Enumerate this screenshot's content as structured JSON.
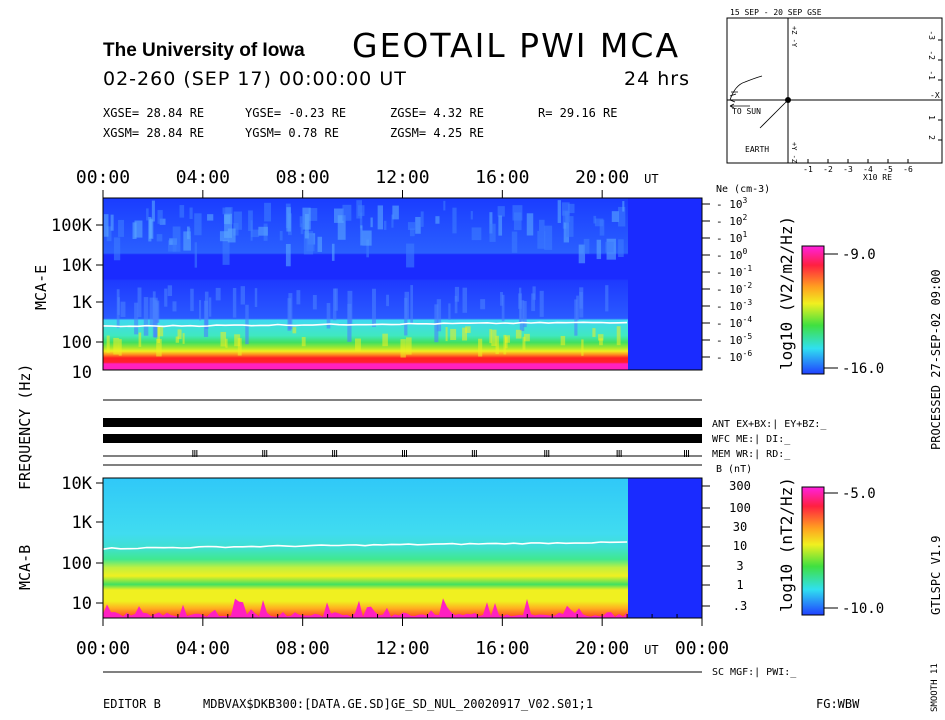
{
  "header": {
    "university": "The University of Iowa",
    "title": "GEOTAIL  PWI  MCA",
    "date_line": "02-260 (SEP 17) 00:00:00 UT",
    "duration": "24 hrs"
  },
  "coords": {
    "gse_x": "XGSE=  28.84 RE",
    "gse_y": "YGSE=  -0.23 RE",
    "gse_z": "ZGSE=   4.32 RE",
    "gse_r": "R= 29.16 RE",
    "gsm_x": "XGSM=  28.84 RE",
    "gsm_y": "YGSM=   0.78 RE",
    "gsm_z": "ZGSM=   4.25 RE"
  },
  "orbit": {
    "title": "15 SEP - 20 SEP  GSE",
    "to_sun": "TO SUN",
    "earth": "EARTH",
    "xlabel": "X10 RE",
    "x_ticks": [
      "-1",
      "-2",
      "-3",
      "-4",
      "-5",
      "-6"
    ],
    "side_ticks": [
      "2",
      "1",
      "-1",
      "-2",
      "-3"
    ],
    "plus_z": "+Z -Y",
    "minus_z": "+Y -Z",
    "x_axis_label": "-X"
  },
  "side": {
    "processed": "PROCESSED 27-SEP-02  09:00",
    "version": "GTLSPC   V1.9",
    "smooth": "SMOOTH 11",
    "frequency": "FREQUENCY (Hz)"
  },
  "status": {
    "ant": "ANT EX+BX:| EY+BZ:_",
    "wfc": "WFC ME:|    DI:_",
    "mem": "MEM WR:|    RD:_",
    "sc": "SC MGF:|   PWI:_"
  },
  "footer": {
    "editor": "EDITOR B",
    "file": "MDBVAX$DKB300:[DATA.GE.SD]GE_SD_NUL_20020917_V02.S01;1",
    "fg": "FG:WBW"
  },
  "chart_data": [
    {
      "type": "heatmap",
      "title": "MCA-E",
      "ylabel": "FREQUENCY (Hz)",
      "yscale": "log",
      "y_ticks": [
        "100K",
        "10K",
        "1K",
        "100",
        "10"
      ],
      "x_ticks": [
        "00:00",
        "04:00",
        "08:00",
        "12:00",
        "16:00",
        "20:00"
      ],
      "x_unit": "UT",
      "xlim_hours": [
        0,
        24
      ],
      "data_end_hour": 21.0,
      "right_axis_label": "Ne (cm-3)",
      "right_axis_ticks": [
        "10^3",
        "10^2",
        "10^1",
        "10^0",
        "10^-1",
        "10^-2",
        "10^-3",
        "10^-4",
        "10^-5",
        "10^-6"
      ],
      "colorbar": {
        "label": "log10 (V2/m2/Hz)",
        "max": "-9.0",
        "min": "-16.0"
      },
      "white_line_hz": [
        250,
        320
      ]
    },
    {
      "type": "heatmap",
      "title": "MCA-B",
      "yscale": "log",
      "y_ticks": [
        "10K",
        "1K",
        "100",
        "10"
      ],
      "x_ticks": [
        "00:00",
        "04:00",
        "08:00",
        "12:00",
        "16:00",
        "20:00",
        "00:00"
      ],
      "x_unit": "UT",
      "xlim_hours": [
        0,
        24
      ],
      "data_end_hour": 21.0,
      "right_axis_label": "B (nT)",
      "right_axis_ticks": [
        "300",
        "100",
        "30",
        "10",
        "3",
        "1",
        ".3"
      ],
      "colorbar": {
        "label": "log10 (nT2/Hz)",
        "max": "-5.0",
        "min": "-10.0"
      },
      "white_line_hz": [
        230,
        330
      ]
    }
  ],
  "colors": {
    "fill_blue": "#1a2bff",
    "cyan": "#30d8f0",
    "green": "#40e060",
    "yellow": "#f0f020",
    "red": "#ff2020",
    "magenta": "#ff20c0"
  }
}
